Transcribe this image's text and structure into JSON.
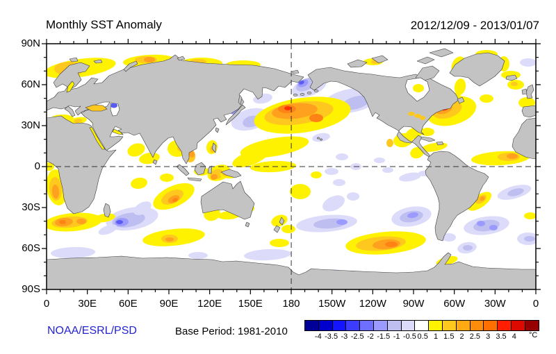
{
  "header": {
    "title": "Monthly SST Anomaly",
    "date_range": "2012/12/09 - 2013/01/07"
  },
  "footer": {
    "credit": "NOAA/ESRL/PSD",
    "credit_color": "#2323D2",
    "base_period": "Base Period: 1981-2010"
  },
  "axes": {
    "lat": [
      "90N",
      "60N",
      "30N",
      "0",
      "30S",
      "60S",
      "90S"
    ],
    "lon": [
      "0",
      "30E",
      "60E",
      "90E",
      "120E",
      "150E",
      "180",
      "150W",
      "120W",
      "90W",
      "60W",
      "30W",
      "0"
    ]
  },
  "colorbar": {
    "ticks": [
      "-4",
      "-3.5",
      "-3",
      "-2.5",
      "-2",
      "-1.5",
      "-1",
      "-0.5",
      "0.5",
      "1",
      "1.5",
      "2",
      "2.5",
      "3",
      "3.5",
      "4"
    ],
    "unit": "°C",
    "colors": [
      "#000096",
      "#0000CD",
      "#1414FF",
      "#3C3CFF",
      "#6E6EFF",
      "#9B9BFF",
      "#BEBEF0",
      "#DCDCFA",
      "#FFFFFF",
      "#FFF200",
      "#FFC81E",
      "#FFAA14",
      "#FF8C0A",
      "#FF7000",
      "#FF1E00",
      "#DC0A00",
      "#960000"
    ]
  },
  "chart_data": {
    "type": "heatmap",
    "title": "Monthly SST Anomaly",
    "subtitle": "2012/12/09 - 2013/01/07",
    "units": "degC",
    "projection": "cylindrical equidistant, lon 0-360E (Pacific centered at 180), lat 90N-90S",
    "xlabel_ticks_deg": [
      0,
      30,
      60,
      90,
      120,
      150,
      180,
      210,
      240,
      270,
      300,
      330,
      360
    ],
    "ylabel_ticks_deg": [
      90,
      60,
      30,
      0,
      -30,
      -60,
      -90
    ],
    "contour_levels_c": [
      -4,
      -3.5,
      -3,
      -2.5,
      -2,
      -1.5,
      -1,
      -0.5,
      0.5,
      1,
      1.5,
      2,
      2.5,
      3,
      3.5,
      4
    ],
    "grid_dashed_lines": {
      "equator_lat": 0,
      "dateline_lon": 180
    },
    "notable_anomalies": [
      {
        "region": "Arctic seas north of Eurasia (0-140E, 70-80N)",
        "anomaly_c": "+1 to +2"
      },
      {
        "region": "Central North Pacific (160E-160W, 30-50N)",
        "anomaly_c": "+1.5 to +3"
      },
      {
        "region": "Bering Strait / Chukchi (175E-165W, 60-70N)",
        "anomaly_c": "-1.5 to -2.5"
      },
      {
        "region": "Gulf of Alaska (150-125W, 40-58N)",
        "anomaly_c": "-0.5 to -1.5"
      },
      {
        "region": "NW Pacific near Japan (135-165E, 25-45N)",
        "anomaly_c": "-0.5 to -1.5"
      },
      {
        "region": "NW Atlantic off US east coast (75-55W, 35-45N)",
        "anomaly_c": "+2.5 to +3.5"
      },
      {
        "region": "Benguela / SW Africa coast (5-15E, 5-25S)",
        "anomaly_c": "+1 to +2"
      },
      {
        "region": "South of Africa (0-30E, 35-40S)",
        "anomaly_c": "+1.5 to +3"
      },
      {
        "region": "Central South Indian Ocean (45-70E, 30-45S)",
        "anomaly_c": "-1 to -2.5"
      },
      {
        "region": "East Indian Ocean (78-102E, 15-30S)",
        "anomaly_c": "+1.5 to +2.5"
      },
      {
        "region": "South Pacific (150-110W, 35-45S)",
        "anomaly_c": "-0.5 to -1.5"
      },
      {
        "region": "SE Pacific off Chile (105-80W, 30-45S)",
        "anomaly_c": "-1 to -2"
      },
      {
        "region": "Southern Ocean South Pacific (130-95W, 50-62S)",
        "anomaly_c": "+1.5 to +2.5"
      },
      {
        "region": "SW Atlantic off Argentina (55-25W, 38-50S)",
        "anomaly_c": "-1 to -2"
      },
      {
        "region": "Brazil coast (50-35W, 22-32S)",
        "anomaly_c": "+1 to +2"
      },
      {
        "region": "Tropical N Atlantic (40-10W, 5-15N)",
        "anomaly_c": "+1 to +2"
      },
      {
        "region": "Tropical W Pacific (150E-180, 5-20N)",
        "anomaly_c": "+0.5 to +1"
      }
    ],
    "palette": {
      "warm": [
        "#FFF200",
        "#FFC81E",
        "#FFA01E",
        "#FF8214",
        "#FF3200"
      ],
      "cold": [
        "#DCDCFA",
        "#BEBEF0",
        "#9B9BFF",
        "#5A5AF5"
      ]
    },
    "blobs": {
      "cold": [
        [
          445,
          125,
          26,
          13,
          -20,
          1
        ],
        [
          440,
          122,
          15,
          8,
          -25,
          2
        ],
        [
          436,
          120,
          8,
          5,
          -25,
          3
        ],
        [
          434,
          119,
          4,
          2.5,
          -25,
          4
        ],
        [
          505,
          145,
          40,
          17,
          -10,
          1
        ],
        [
          512,
          148,
          20,
          9,
          -15,
          2
        ],
        [
          378,
          142,
          14,
          7,
          -10,
          1
        ],
        [
          360,
          172,
          28,
          15,
          -15,
          1
        ],
        [
          362,
          175,
          13,
          8,
          -15,
          2
        ],
        [
          337,
          158,
          8,
          7,
          0,
          3
        ],
        [
          337,
          157,
          4,
          3,
          0,
          4
        ],
        [
          462,
          198,
          13,
          6,
          -10,
          1
        ],
        [
          492,
          226,
          9,
          5,
          0,
          1
        ],
        [
          512,
          240,
          8,
          5,
          0,
          1
        ],
        [
          546,
          231,
          8,
          4,
          0,
          1
        ],
        [
          488,
          263,
          9,
          5,
          0,
          1
        ],
        [
          558,
          245,
          8,
          4,
          0,
          1
        ],
        [
          760,
          90,
          12,
          6,
          0,
          1
        ],
        [
          590,
          255,
          16,
          6,
          -10,
          1
        ],
        [
          610,
          250,
          8,
          4,
          0,
          1
        ],
        [
          592,
          312,
          29,
          14,
          -10,
          1
        ],
        [
          592,
          312,
          17,
          8,
          -10,
          2
        ],
        [
          594,
          310,
          8,
          4,
          -10,
          3
        ],
        [
          700,
          325,
          33,
          13,
          -8,
          1
        ],
        [
          700,
          325,
          19,
          8,
          -8,
          2
        ],
        [
          692,
          322,
          6,
          4,
          0,
          3
        ],
        [
          710,
          328,
          6,
          4,
          0,
          3
        ],
        [
          740,
          277,
          25,
          9,
          -15,
          1
        ],
        [
          742,
          277,
          12,
          5,
          -15,
          2
        ],
        [
          190,
          315,
          38,
          16,
          -10,
          1
        ],
        [
          185,
          317,
          24,
          10,
          -10,
          2
        ],
        [
          175,
          320,
          10,
          6,
          -5,
          3
        ],
        [
          172,
          320,
          5,
          3,
          0,
          4
        ],
        [
          205,
          300,
          14,
          8,
          -30,
          1
        ],
        [
          155,
          331,
          14,
          6,
          -20,
          1
        ],
        [
          470,
          322,
          44,
          12,
          -5,
          1
        ],
        [
          475,
          322,
          24,
          7,
          -5,
          2
        ],
        [
          492,
          320,
          8,
          4,
          0,
          3
        ],
        [
          480,
          293,
          17,
          10,
          -25,
          1
        ],
        [
          477,
          247,
          10,
          5,
          0,
          1
        ],
        [
          508,
          283,
          9,
          6,
          0,
          1
        ],
        [
          105,
          364,
          32,
          8,
          -2,
          1
        ],
        [
          285,
          368,
          14,
          5,
          0,
          1
        ],
        [
          385,
          367,
          34,
          8,
          -3,
          1
        ],
        [
          480,
          392,
          12,
          4,
          0,
          1
        ],
        [
          672,
          357,
          14,
          8,
          -10,
          1
        ],
        [
          673,
          357,
          7,
          4,
          0,
          2
        ],
        [
          760,
          344,
          16,
          9,
          0,
          1
        ],
        [
          762,
          344,
          8,
          4,
          0,
          2
        ],
        [
          646,
          342,
          10,
          6,
          0,
          1
        ]
      ],
      "warm": [
        [
          115,
          98,
          52,
          13,
          -8,
          1
        ],
        [
          100,
          99,
          22,
          10,
          0,
          2
        ],
        [
          108,
          100,
          12,
          6,
          0,
          3
        ],
        [
          215,
          88,
          38,
          9,
          -3,
          1
        ],
        [
          210,
          86,
          16,
          5,
          0,
          2
        ],
        [
          215,
          86,
          8,
          4,
          0,
          3
        ],
        [
          290,
          91,
          30,
          8,
          0,
          1
        ],
        [
          285,
          89,
          12,
          4,
          0,
          2
        ],
        [
          350,
          93,
          25,
          6,
          0,
          1
        ],
        [
          537,
          89,
          14,
          5,
          0,
          1
        ],
        [
          540,
          89,
          6,
          3,
          0,
          2
        ],
        [
          660,
          95,
          10,
          14,
          20,
          1
        ],
        [
          700,
          78,
          16,
          6,
          0,
          1
        ],
        [
          725,
          92,
          8,
          11,
          0,
          1
        ],
        [
          662,
          125,
          8,
          12,
          10,
          1
        ],
        [
          735,
          108,
          14,
          6,
          0,
          1
        ],
        [
          742,
          122,
          12,
          7,
          0,
          1
        ],
        [
          740,
          121,
          5,
          3,
          0,
          2
        ],
        [
          758,
          148,
          12,
          8,
          0,
          1
        ],
        [
          700,
          142,
          10,
          6,
          0,
          1
        ],
        [
          90,
          170,
          16,
          5,
          0,
          1
        ],
        [
          112,
          174,
          13,
          5,
          -10,
          1
        ],
        [
          112,
          174,
          6,
          3,
          -10,
          2
        ],
        [
          137,
          174,
          7,
          4,
          0,
          1
        ],
        [
          196,
          216,
          13,
          9,
          -20,
          1
        ],
        [
          215,
          228,
          15,
          8,
          -10,
          1
        ],
        [
          255,
          214,
          14,
          12,
          0,
          1
        ],
        [
          262,
          213,
          7,
          6,
          0,
          2
        ],
        [
          273,
          224,
          8,
          10,
          -15,
          2
        ],
        [
          276,
          222,
          4,
          5,
          -15,
          3
        ],
        [
          305,
          212,
          8,
          10,
          10,
          1
        ],
        [
          306,
          215,
          4,
          5,
          10,
          2
        ],
        [
          315,
          249,
          17,
          11,
          -20,
          1
        ],
        [
          312,
          251,
          10,
          7,
          -20,
          2
        ],
        [
          308,
          255,
          5,
          4,
          -20,
          3
        ],
        [
          290,
          247,
          11,
          6,
          0,
          1
        ],
        [
          330,
          252,
          13,
          5,
          0,
          1
        ],
        [
          326,
          251,
          6,
          3,
          0,
          2
        ],
        [
          395,
          212,
          50,
          13,
          -10,
          1
        ],
        [
          360,
          228,
          27,
          10,
          -20,
          1
        ],
        [
          393,
          240,
          33,
          8,
          -3,
          1
        ],
        [
          432,
          276,
          15,
          11,
          0,
          1
        ],
        [
          455,
          252,
          8,
          5,
          0,
          1
        ],
        [
          435,
          166,
          70,
          25,
          -8,
          1
        ],
        [
          430,
          163,
          50,
          16,
          -8,
          2
        ],
        [
          424,
          160,
          33,
          11,
          -6,
          3
        ],
        [
          413,
          157,
          13,
          6,
          0,
          4
        ],
        [
          414,
          156,
          5,
          3,
          0,
          5
        ],
        [
          455,
          170,
          10,
          6,
          0,
          4
        ],
        [
          650,
          160,
          36,
          20,
          -15,
          1
        ],
        [
          643,
          158,
          22,
          12,
          -15,
          2
        ],
        [
          638,
          156,
          13,
          8,
          -15,
          3
        ],
        [
          640,
          154,
          7,
          5,
          -15,
          5
        ],
        [
          655,
          140,
          11,
          6,
          20,
          1
        ],
        [
          602,
          127,
          9,
          7,
          0,
          1
        ],
        [
          615,
          190,
          10,
          6,
          0,
          1
        ],
        [
          596,
          192,
          13,
          8,
          -20,
          1
        ],
        [
          625,
          212,
          19,
          6,
          -10,
          1
        ],
        [
          580,
          202,
          14,
          10,
          -10,
          1
        ],
        [
          561,
          206,
          5,
          6,
          0,
          2
        ],
        [
          600,
          220,
          10,
          8,
          -20,
          1
        ],
        [
          720,
          228,
          42,
          10,
          -3,
          1
        ],
        [
          732,
          226,
          16,
          6,
          0,
          2
        ],
        [
          737,
          225,
          8,
          4,
          0,
          3
        ],
        [
          592,
          164,
          5,
          3,
          0,
          2
        ],
        [
          601,
          167,
          5,
          3,
          0,
          2
        ],
        [
          608,
          170,
          4,
          3,
          0,
          2
        ],
        [
          690,
          290,
          20,
          9,
          -35,
          1
        ],
        [
          692,
          287,
          9,
          5,
          -35,
          2
        ],
        [
          694,
          286,
          4,
          3,
          -35,
          3
        ],
        [
          763,
          311,
          9,
          5,
          0,
          1
        ],
        [
          555,
          350,
          58,
          16,
          -5,
          1
        ],
        [
          548,
          351,
          36,
          10,
          -5,
          2
        ],
        [
          556,
          352,
          20,
          7,
          -5,
          3
        ],
        [
          563,
          352,
          9,
          4,
          0,
          4
        ],
        [
          643,
          376,
          16,
          6,
          -15,
          1
        ],
        [
          638,
          378,
          4,
          3,
          0,
          3
        ],
        [
          70,
          240,
          8,
          6,
          0,
          1
        ],
        [
          82,
          270,
          15,
          26,
          -8,
          1
        ],
        [
          80,
          272,
          9,
          17,
          -5,
          2
        ],
        [
          80,
          276,
          5,
          10,
          -5,
          3
        ],
        [
          105,
          320,
          42,
          13,
          -5,
          1
        ],
        [
          100,
          320,
          26,
          8,
          -5,
          2
        ],
        [
          92,
          320,
          13,
          6,
          -5,
          3
        ],
        [
          117,
          319,
          7,
          4,
          0,
          3
        ],
        [
          90,
          320,
          5,
          3,
          0,
          4
        ],
        [
          150,
          314,
          16,
          6,
          -10,
          1
        ],
        [
          200,
          264,
          12,
          8,
          -10,
          1
        ],
        [
          240,
          256,
          10,
          6,
          0,
          1
        ],
        [
          250,
          283,
          32,
          15,
          -25,
          1
        ],
        [
          248,
          284,
          17,
          9,
          -25,
          2
        ],
        [
          250,
          287,
          9,
          5,
          -25,
          3
        ],
        [
          252,
          288,
          4,
          2.5,
          -25,
          4
        ],
        [
          250,
          342,
          45,
          12,
          -6,
          1
        ],
        [
          244,
          344,
          12,
          6,
          0,
          2
        ],
        [
          244,
          345,
          6,
          3,
          0,
          3
        ],
        [
          305,
          308,
          12,
          10,
          -20,
          1
        ],
        [
          330,
          310,
          17,
          6,
          -5,
          1
        ],
        [
          358,
          300,
          8,
          6,
          0,
          1
        ],
        [
          402,
          318,
          12,
          8,
          -20,
          1
        ],
        [
          415,
          330,
          10,
          6,
          0,
          1
        ],
        [
          402,
          350,
          14,
          6,
          0,
          1
        ]
      ]
    }
  }
}
